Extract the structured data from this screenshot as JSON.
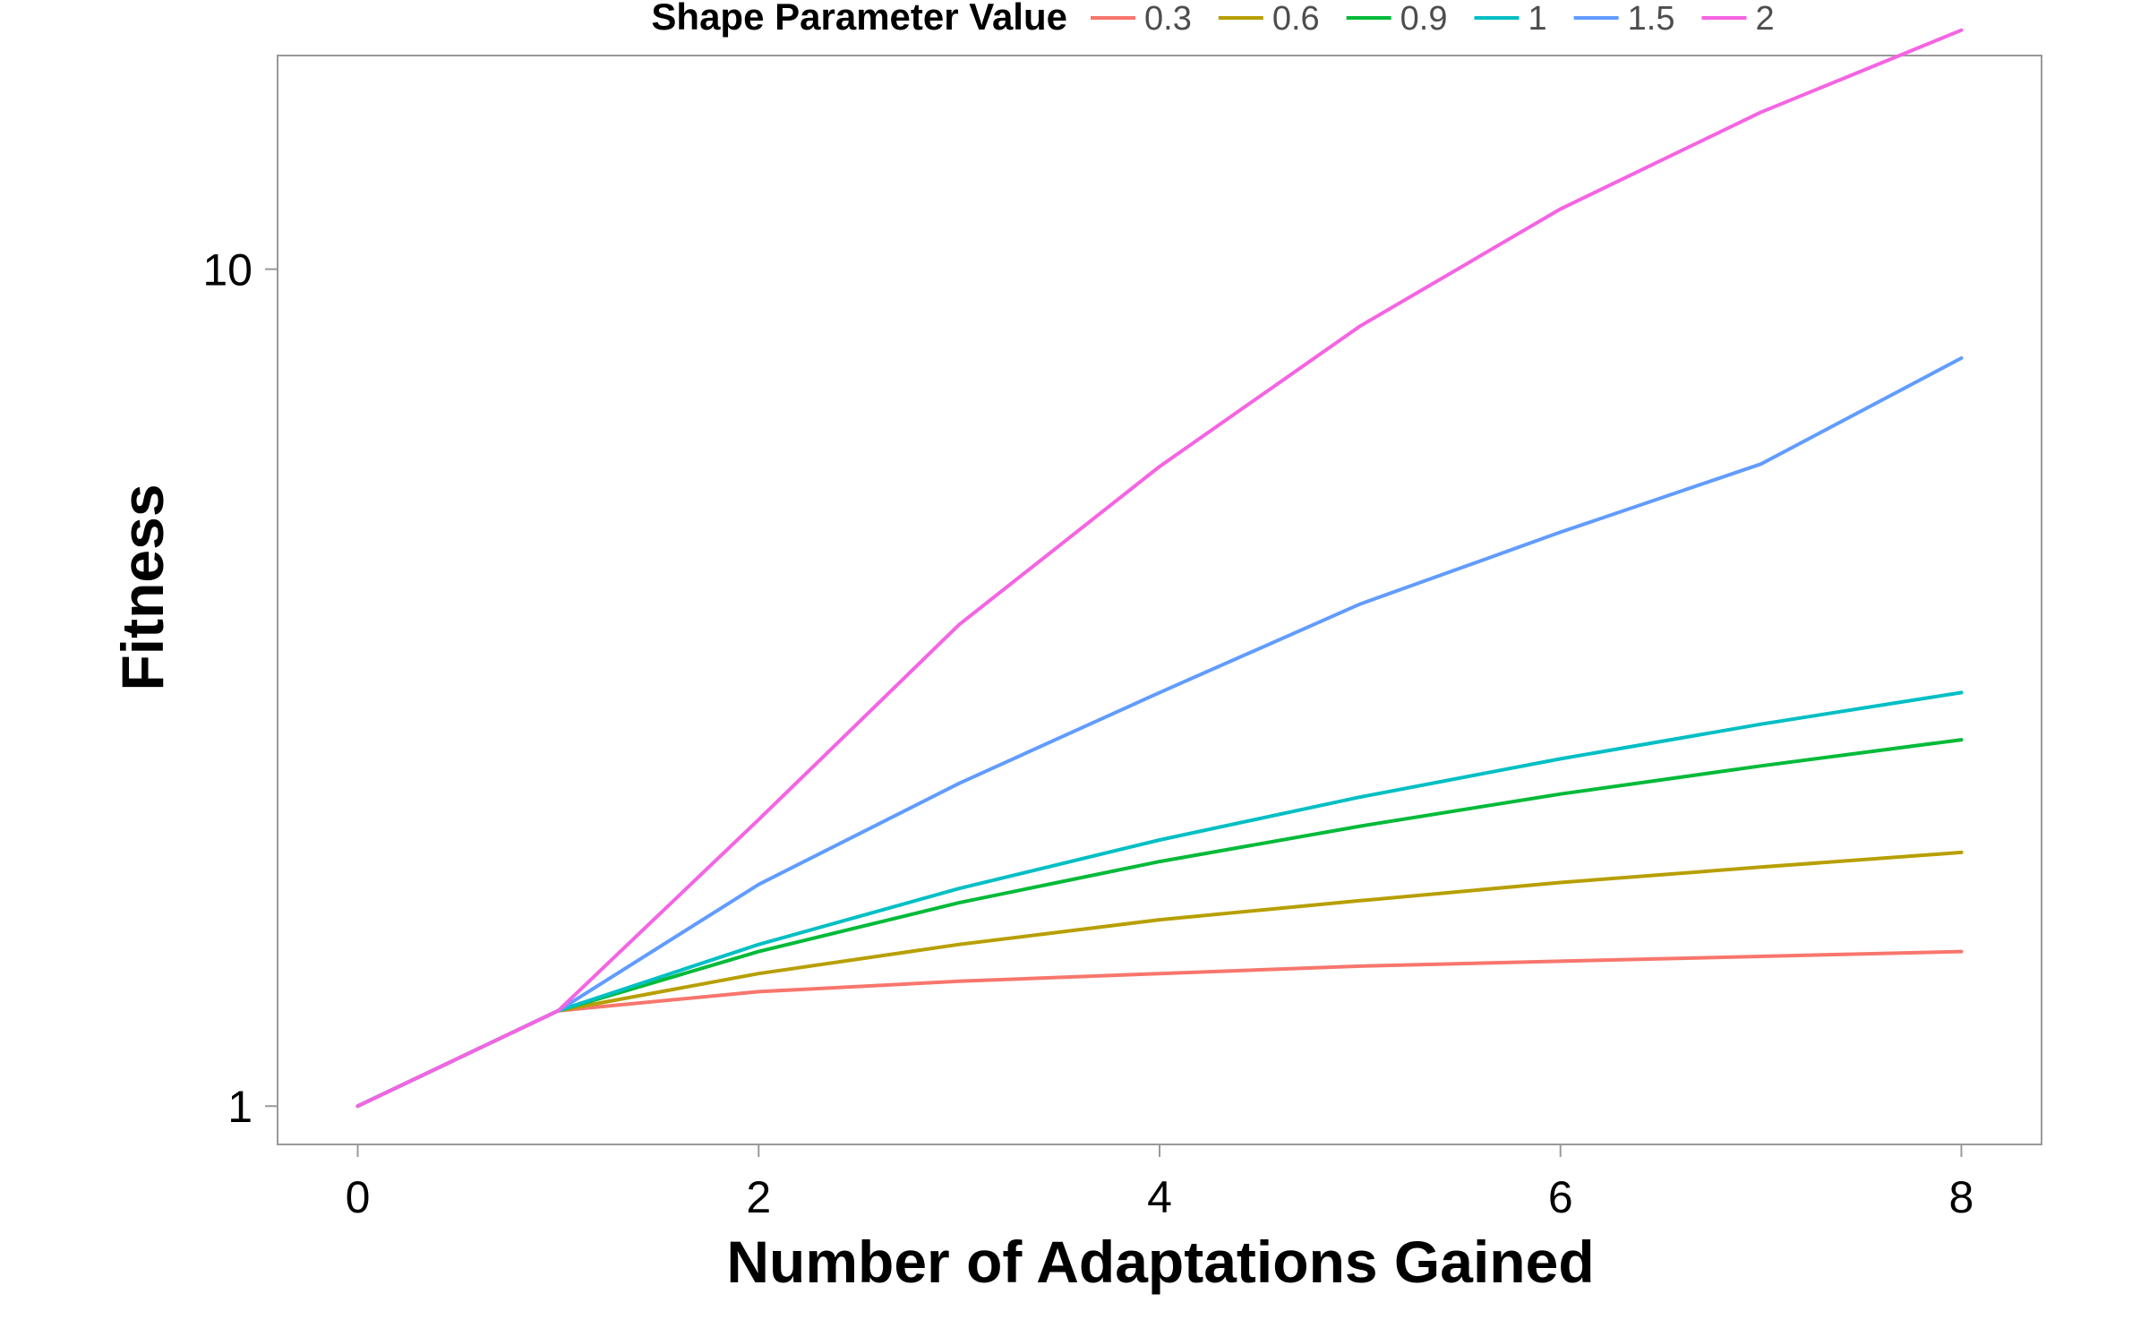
{
  "chart_data": {
    "type": "line",
    "xlabel": "Number of Adaptations Gained",
    "ylabel": "Fitness",
    "x": [
      0,
      1,
      2,
      3,
      4,
      5,
      6,
      7,
      8
    ],
    "xlim": [
      -0.4,
      8.4
    ],
    "ylim": [
      0.9,
      18
    ],
    "y_scale": "log",
    "x_ticks": [
      0,
      2,
      4,
      6,
      8
    ],
    "y_ticks": [
      1,
      10
    ],
    "grid": false,
    "legend": {
      "title": "Shape Parameter Value",
      "position": "top"
    },
    "series": [
      {
        "name": "0.3",
        "color": "#F8766D",
        "values": [
          1,
          1.3,
          1.37,
          1.41,
          1.44,
          1.47,
          1.49,
          1.51,
          1.53
        ]
      },
      {
        "name": "0.6",
        "color": "#B79F00",
        "values": [
          1,
          1.3,
          1.44,
          1.56,
          1.67,
          1.76,
          1.85,
          1.93,
          2.01
        ]
      },
      {
        "name": "0.9",
        "color": "#00BA38",
        "values": [
          1,
          1.3,
          1.53,
          1.75,
          1.96,
          2.16,
          2.36,
          2.55,
          2.74
        ]
      },
      {
        "name": "1",
        "color": "#00BFC4",
        "values": [
          1,
          1.3,
          1.56,
          1.82,
          2.08,
          2.34,
          2.6,
          2.86,
          3.12
        ]
      },
      {
        "name": "1.5",
        "color": "#619CFF",
        "values": [
          1,
          1.3,
          1.84,
          2.43,
          3.12,
          3.98,
          4.85,
          5.85,
          7.83
        ]
      },
      {
        "name": "2",
        "color": "#F564E3",
        "values": [
          1,
          1.3,
          2.2,
          3.76,
          5.81,
          8.55,
          11.8,
          15.4,
          19.3
        ]
      }
    ]
  }
}
